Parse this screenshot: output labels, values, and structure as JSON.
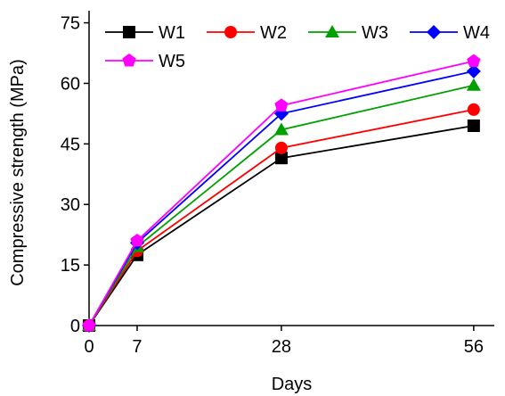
{
  "chart_data": {
    "type": "line",
    "title": "",
    "xlabel": "Days",
    "ylabel": "Compressive strength (MPa)",
    "x": [
      0,
      7,
      28,
      56
    ],
    "x_ticks": [
      "0",
      "7",
      "28",
      "56"
    ],
    "y_ticks": [
      "0",
      "15",
      "30",
      "45",
      "60",
      "75"
    ],
    "xlim": [
      0,
      59
    ],
    "ylim": [
      0,
      78
    ],
    "grid": false,
    "legend_position": "top",
    "series": [
      {
        "name": "W1",
        "color": "#000000",
        "marker": "square",
        "values": [
          0,
          17.5,
          41.5,
          49.5
        ]
      },
      {
        "name": "W2",
        "color": "#ff0000",
        "marker": "circle",
        "values": [
          0,
          18.5,
          44,
          53.5
        ]
      },
      {
        "name": "W3",
        "color": "#00a000",
        "marker": "triangle",
        "values": [
          0,
          19.5,
          48.5,
          59.5
        ]
      },
      {
        "name": "W4",
        "color": "#0000ff",
        "marker": "diamond",
        "values": [
          0,
          20.5,
          52.5,
          63
        ]
      },
      {
        "name": "W5",
        "color": "#ff00ff",
        "marker": "pentagon",
        "values": [
          0,
          21,
          54.5,
          65.5
        ]
      }
    ]
  }
}
